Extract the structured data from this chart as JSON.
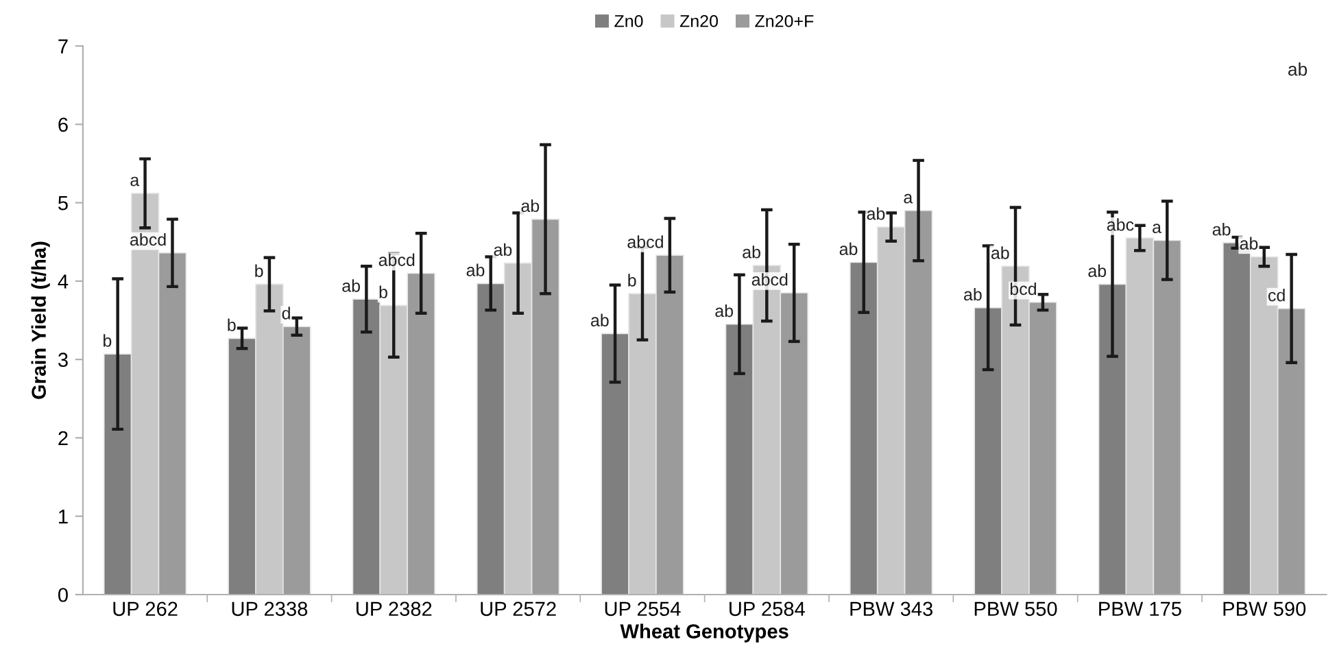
{
  "chart_data": {
    "type": "bar",
    "xlabel": "Wheat Genotypes",
    "ylabel": "Grain Yield (t/ha)",
    "categories": [
      "UP 262",
      "UP 2338",
      "UP 2382",
      "UP 2572",
      "UP 2554",
      "UP 2584",
      "PBW 343",
      "PBW 550",
      "PBW 175",
      "PBW 590"
    ],
    "series": [
      {
        "name": "Zn0",
        "color": "#7f7f7f",
        "values": [
          3.07,
          3.27,
          3.77,
          3.97,
          3.33,
          3.45,
          4.24,
          3.66,
          3.96,
          4.49
        ],
        "errors": [
          0.96,
          0.13,
          0.42,
          0.34,
          0.62,
          0.63,
          0.64,
          0.79,
          0.92,
          0.07
        ],
        "value_labels": [
          "b",
          "b",
          "ab",
          "ab",
          "ab",
          "ab",
          "ab",
          "ab",
          "ab",
          "ab"
        ]
      },
      {
        "name": "Zn20",
        "color": "#c6c7c6",
        "values": [
          5.12,
          3.96,
          3.69,
          4.23,
          3.84,
          4.2,
          4.69,
          4.19,
          4.55,
          4.31
        ],
        "errors": [
          0.44,
          0.34,
          0.66,
          0.64,
          0.59,
          0.71,
          0.18,
          0.75,
          0.16,
          0.12
        ],
        "value_labels": [
          "a",
          "b",
          "b",
          "ab",
          "b",
          "ab",
          "ab",
          "ab",
          "abc",
          "ab"
        ]
      },
      {
        "name": "Zn20+F",
        "color": "#9a9b9a",
        "values": [
          4.36,
          3.42,
          4.1,
          4.79,
          4.33,
          3.85,
          4.9,
          3.73,
          4.52,
          3.65
        ],
        "errors": [
          0.43,
          0.11,
          0.51,
          0.95,
          0.47,
          0.62,
          0.64,
          0.1,
          0.5,
          0.69
        ],
        "value_labels": [
          "abcd",
          "d",
          "abcd",
          "ab",
          "abcd",
          "abcd",
          "a",
          "bcd",
          "a",
          "cd"
        ]
      }
    ],
    "ylim": [
      0,
      7
    ],
    "yticks": [
      0,
      1,
      2,
      3,
      4,
      5,
      6,
      7
    ],
    "legend": "top",
    "annotations": [
      "ab"
    ]
  }
}
